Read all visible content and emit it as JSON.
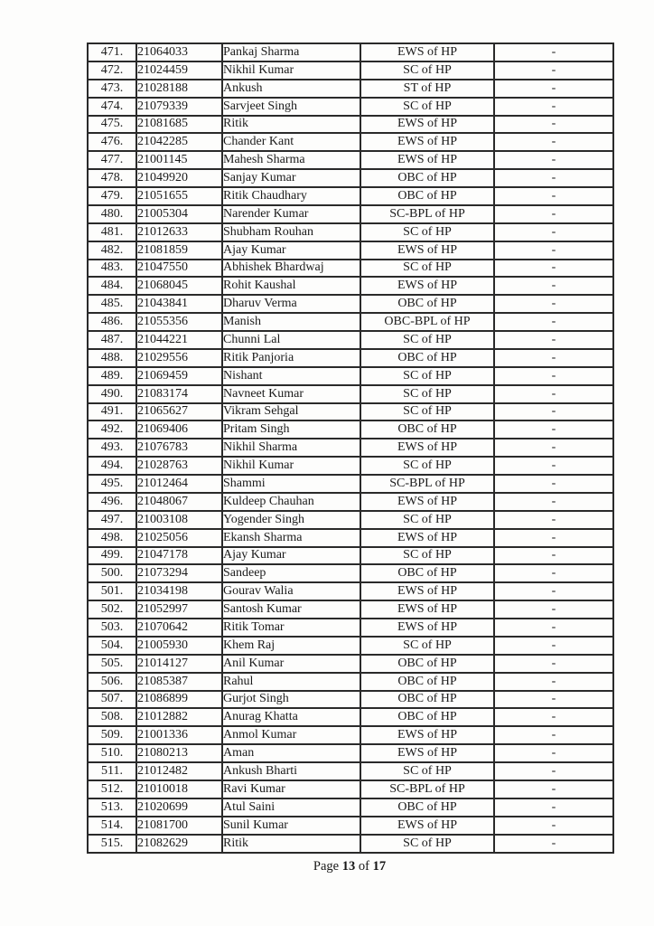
{
  "table": {
    "cell_names": [
      "serial-cell",
      "roll-number-cell",
      "candidate-name-cell",
      "category-cell",
      "remark-cell"
    ],
    "rows": [
      [
        "471.",
        "21064033",
        "Pankaj Sharma",
        "EWS of HP",
        "-"
      ],
      [
        "472.",
        "21024459",
        "Nikhil Kumar",
        "SC of HP",
        "-"
      ],
      [
        "473.",
        "21028188",
        "Ankush",
        "ST of HP",
        "-"
      ],
      [
        "474.",
        "21079339",
        "Sarvjeet Singh",
        "SC of HP",
        "-"
      ],
      [
        "475.",
        "21081685",
        "Ritik",
        "EWS of HP",
        "-"
      ],
      [
        "476.",
        "21042285",
        "Chander Kant",
        "EWS of HP",
        "-"
      ],
      [
        "477.",
        "21001145",
        "Mahesh Sharma",
        "EWS of HP",
        "-"
      ],
      [
        "478.",
        "21049920",
        "Sanjay Kumar",
        "OBC of HP",
        "-"
      ],
      [
        "479.",
        "21051655",
        "Ritik Chaudhary",
        "OBC of HP",
        "-"
      ],
      [
        "480.",
        "21005304",
        "Narender Kumar",
        "SC-BPL of HP",
        "-"
      ],
      [
        "481.",
        "21012633",
        "Shubham Rouhan",
        "SC of HP",
        "-"
      ],
      [
        "482.",
        "21081859",
        "Ajay Kumar",
        "EWS of HP",
        "-"
      ],
      [
        "483.",
        "21047550",
        "Abhishek Bhardwaj",
        "SC of HP",
        "-"
      ],
      [
        "484.",
        "21068045",
        "Rohit Kaushal",
        "EWS of HP",
        "-"
      ],
      [
        "485.",
        "21043841",
        "Dharuv Verma",
        "OBC of HP",
        "-"
      ],
      [
        "486.",
        "21055356",
        "Manish",
        "OBC-BPL of HP",
        "-"
      ],
      [
        "487.",
        "21044221",
        "Chunni Lal",
        "SC of HP",
        "-"
      ],
      [
        "488.",
        "21029556",
        "Ritik Panjoria",
        "OBC of HP",
        "-"
      ],
      [
        "489.",
        "21069459",
        "Nishant",
        "SC of HP",
        "-"
      ],
      [
        "490.",
        "21083174",
        "Navneet Kumar",
        "SC of HP",
        "-"
      ],
      [
        "491.",
        "21065627",
        "Vikram Sehgal",
        "SC of HP",
        "-"
      ],
      [
        "492.",
        "21069406",
        "Pritam Singh",
        "OBC of HP",
        "-"
      ],
      [
        "493.",
        "21076783",
        "Nikhil Sharma",
        "EWS of HP",
        "-"
      ],
      [
        "494.",
        "21028763",
        "Nikhil Kumar",
        "SC of HP",
        "-"
      ],
      [
        "495.",
        "21012464",
        "Shammi",
        "SC-BPL of HP",
        "-"
      ],
      [
        "496.",
        "21048067",
        "Kuldeep Chauhan",
        "EWS of HP",
        "-"
      ],
      [
        "497.",
        "21003108",
        "Yogender Singh",
        "SC of HP",
        "-"
      ],
      [
        "498.",
        "21025056",
        "Ekansh Sharma",
        "EWS of HP",
        "-"
      ],
      [
        "499.",
        "21047178",
        "Ajay Kumar",
        "SC of HP",
        "-"
      ],
      [
        "500.",
        "21073294",
        "Sandeep",
        "OBC of HP",
        "-"
      ],
      [
        "501.",
        "21034198",
        "Gourav Walia",
        "EWS of HP",
        "-"
      ],
      [
        "502.",
        "21052997",
        "Santosh Kumar",
        "EWS of HP",
        "-"
      ],
      [
        "503.",
        "21070642",
        "Ritik Tomar",
        "EWS of HP",
        "-"
      ],
      [
        "504.",
        "21005930",
        "Khem Raj",
        "SC of HP",
        "-"
      ],
      [
        "505.",
        "21014127",
        "Anil Kumar",
        "OBC of HP",
        "-"
      ],
      [
        "506.",
        "21085387",
        "Rahul",
        "OBC of HP",
        "-"
      ],
      [
        "507.",
        "21086899",
        "Gurjot Singh",
        "OBC of HP",
        "-"
      ],
      [
        "508.",
        "21012882",
        "Anurag Khatta",
        "OBC of HP",
        "-"
      ],
      [
        "509.",
        "21001336",
        "Anmol Kumar",
        "EWS of HP",
        "-"
      ],
      [
        "510.",
        "21080213",
        "Aman",
        "EWS of HP",
        "-"
      ],
      [
        "511.",
        "21012482",
        "Ankush Bharti",
        "SC of HP",
        "-"
      ],
      [
        "512.",
        "21010018",
        "Ravi Kumar",
        "SC-BPL of HP",
        "-"
      ],
      [
        "513.",
        "21020699",
        "Atul Saini",
        "OBC of HP",
        "-"
      ],
      [
        "514.",
        "21081700",
        "Sunil Kumar",
        "EWS of HP",
        "-"
      ],
      [
        "515.",
        "21082629",
        "Ritik",
        "SC of HP",
        "-"
      ]
    ]
  },
  "footer": {
    "word_page": "Page",
    "page_number": "13",
    "word_of": "of",
    "total_pages": "17"
  }
}
